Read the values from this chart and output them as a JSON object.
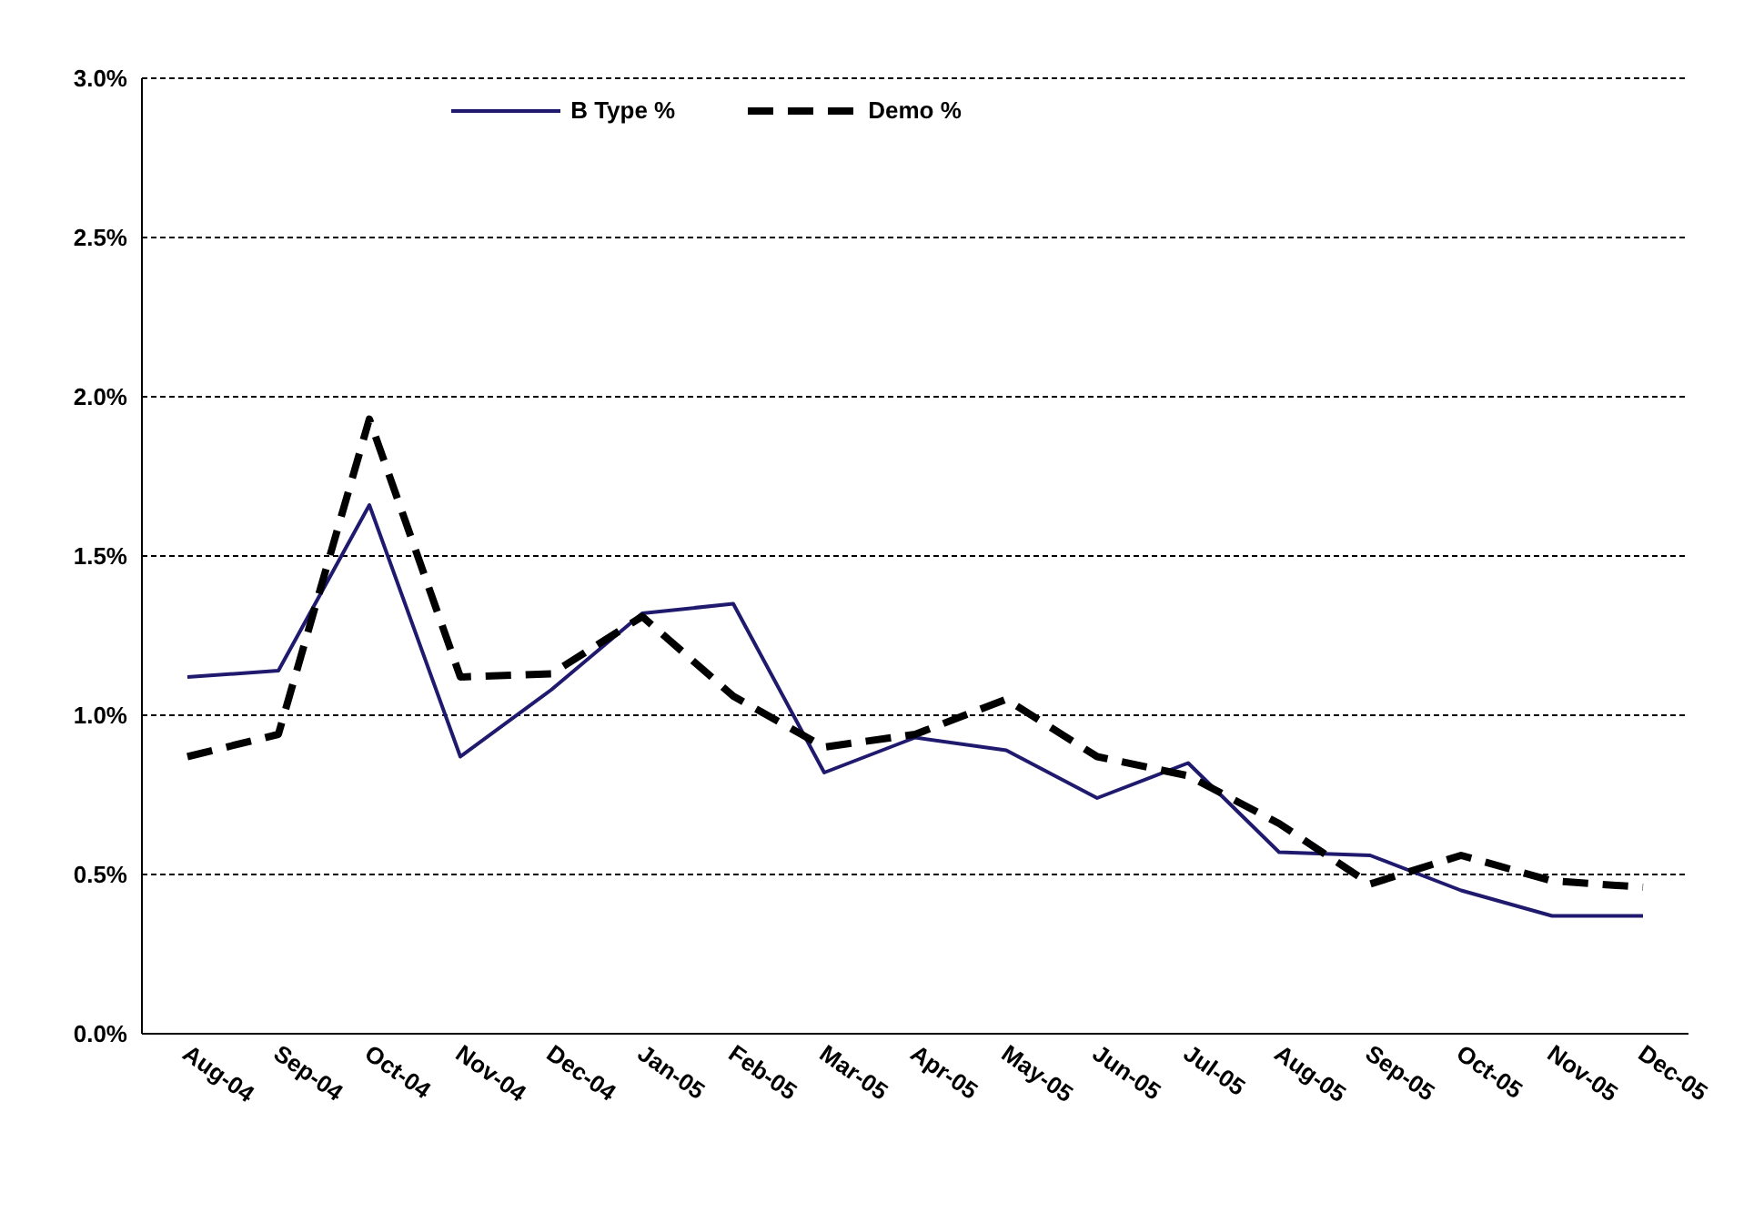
{
  "chart_data": {
    "type": "line",
    "categories": [
      "Aug-04",
      "Sep-04",
      "Oct-04",
      "Nov-04",
      "Dec-04",
      "Jan-05",
      "Feb-05",
      "Mar-05",
      "Apr-05",
      "May-05",
      "Jun-05",
      "Jul-05",
      "Aug-05",
      "Sep-05",
      "Oct-05",
      "Nov-05",
      "Dec-05"
    ],
    "series": [
      {
        "name": "B Type %",
        "color": "#1f1a6e",
        "line_style": "solid",
        "values": [
          1.12,
          1.14,
          1.66,
          0.87,
          1.08,
          1.32,
          1.35,
          0.82,
          0.93,
          0.89,
          0.74,
          0.85,
          0.57,
          0.56,
          0.45,
          0.37,
          0.37
        ]
      },
      {
        "name": "Demo %",
        "color": "#000000",
        "line_style": "dashed",
        "values": [
          0.87,
          0.94,
          1.93,
          1.12,
          1.13,
          1.31,
          1.06,
          0.9,
          0.94,
          1.05,
          0.87,
          0.81,
          0.66,
          0.47,
          0.56,
          0.48,
          0.46
        ]
      }
    ],
    "ylim": [
      0,
      3
    ],
    "yticks": [
      {
        "value": 0,
        "label": "0.0%"
      },
      {
        "value": 0.5,
        "label": "0.5%"
      },
      {
        "value": 1,
        "label": "1.0%"
      },
      {
        "value": 1.5,
        "label": "1.5%"
      },
      {
        "value": 2,
        "label": "2.0%"
      },
      {
        "value": 2.5,
        "label": "2.5%"
      },
      {
        "value": 3,
        "label": "3.0%"
      }
    ],
    "grid": "y",
    "legend": "top",
    "marker": "none"
  }
}
